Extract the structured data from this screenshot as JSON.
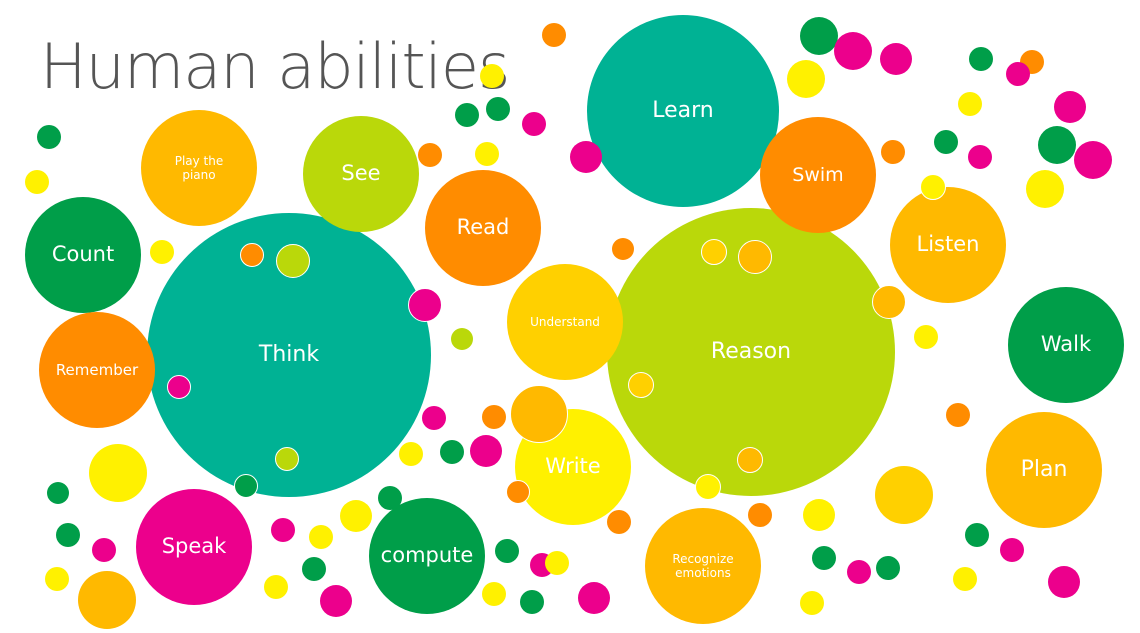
{
  "title": "Human abilities",
  "colors": {
    "teal": "#00B294",
    "lime": "#BAD80A",
    "orange": "#FF8C00",
    "amber": "#FFB900",
    "gold": "#FFD000",
    "yellow": "#FFF100",
    "green": "#009E49",
    "magenta": "#EC008C",
    "background": "#FFFFFF"
  },
  "bubbles": [
    {
      "label": "Learn",
      "color": "teal"
    },
    {
      "label": "Think",
      "color": "teal"
    },
    {
      "label": "Reason",
      "color": "lime"
    },
    {
      "label": "See",
      "color": "lime"
    },
    {
      "label": "Play the piano",
      "color": "amber"
    },
    {
      "label": "Count",
      "color": "green"
    },
    {
      "label": "Remember",
      "color": "orange"
    },
    {
      "label": "Read",
      "color": "orange"
    },
    {
      "label": "Understand",
      "color": "gold"
    },
    {
      "label": "Write",
      "color": "yellow"
    },
    {
      "label": "Swim",
      "color": "orange"
    },
    {
      "label": "Listen",
      "color": "amber"
    },
    {
      "label": "Walk",
      "color": "green"
    },
    {
      "label": "Plan",
      "color": "amber"
    },
    {
      "label": "Speak",
      "color": "magenta"
    },
    {
      "label": "compute",
      "color": "green"
    },
    {
      "label": "Recognize emotions",
      "color": "amber"
    }
  ]
}
